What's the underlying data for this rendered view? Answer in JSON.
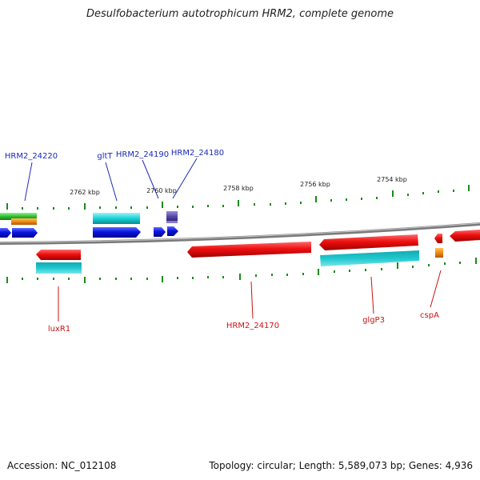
{
  "title": "Desulfobacterium autotrophicum HRM2, complete genome",
  "footer": {
    "accession": "Accession: NC_012108",
    "summary": "Topology: circular; Length: 5,589,073 bp; Genes: 4,936"
  },
  "scale_labels": [
    "2762 kbp",
    "2760 kbp",
    "2758 kbp",
    "2756 kbp",
    "2754 kbp"
  ],
  "gene_labels_top": [
    "HRM2_24220",
    "gltT",
    "HRM2_24190",
    "HRM2_24180"
  ],
  "gene_labels_bottom": [
    "luxR1",
    "HRM2_24170",
    "glgP3",
    "cspA"
  ],
  "colors": {
    "forward_gene": "#0a14d8",
    "reverse_gene": "#e01010",
    "cds_cyan": "#17c2c8",
    "cds_green": "#2ec02e",
    "cds_orange": "#f08a10",
    "cds_purple": "#5a4aa8",
    "backbone": "#808080",
    "ticks": "#1a8a1a",
    "label_blue": "#1a2ab8",
    "label_red": "#c81414"
  }
}
